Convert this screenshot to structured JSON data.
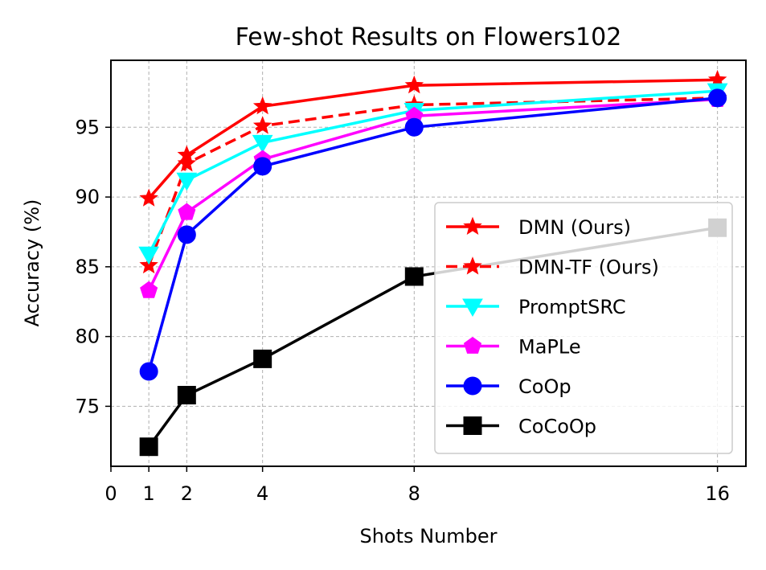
{
  "chart_data": {
    "type": "line",
    "title": "Few-shot Results on Flowers102",
    "xlabel": "Shots Number",
    "ylabel": "Accuracy (%)",
    "x": [
      1,
      2,
      4,
      8,
      16
    ],
    "xticks": [
      0,
      1,
      2,
      4,
      8,
      16
    ],
    "yticks": [
      75,
      80,
      85,
      90,
      95
    ],
    "xlim": [
      0,
      16.75
    ],
    "ylim": [
      70.7,
      99.8
    ],
    "grid": true,
    "legend_position": "lower-right",
    "series": [
      {
        "name": "DMN (Ours)",
        "values": [
          89.9,
          93.0,
          96.5,
          98.0,
          98.4
        ],
        "color": "#ff0000",
        "marker": "star",
        "dash": "solid"
      },
      {
        "name": "DMN-TF (Ours)",
        "values": [
          85.1,
          92.4,
          95.1,
          96.6,
          97.1
        ],
        "color": "#ff0000",
        "marker": "star",
        "dash": "dashed"
      },
      {
        "name": "PromptSRC",
        "values": [
          85.9,
          91.2,
          93.9,
          96.2,
          97.6
        ],
        "color": "#00ffff",
        "marker": "triangle-down",
        "dash": "solid"
      },
      {
        "name": "MaPLe",
        "values": [
          83.3,
          88.9,
          92.7,
          95.8,
          97.0
        ],
        "color": "#ff00ff",
        "marker": "pentagon",
        "dash": "solid"
      },
      {
        "name": "CoOp",
        "values": [
          77.5,
          87.3,
          92.2,
          95.0,
          97.1
        ],
        "color": "#0000ff",
        "marker": "circle",
        "dash": "solid"
      },
      {
        "name": "CoCoOp",
        "values": [
          72.1,
          75.8,
          78.4,
          84.3,
          87.8
        ],
        "color": "#000000",
        "marker": "square",
        "dash": "solid"
      }
    ]
  }
}
